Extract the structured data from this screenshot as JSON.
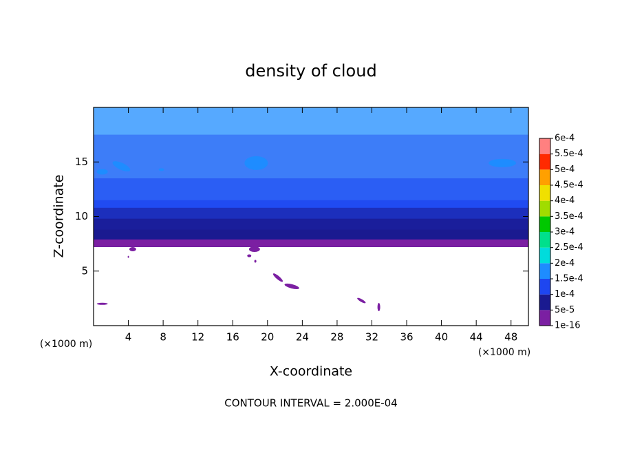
{
  "chart_data": {
    "type": "contour",
    "title": "density of cloud",
    "x_label": "X-coordinate",
    "y_label": "Z-coordinate",
    "x_unit": "(×1000 m)",
    "y_unit": "(×1000 m)",
    "footer": "CONTOUR INTERVAL = 2.000E-04",
    "xlim": [
      0,
      50
    ],
    "xticks": [
      4,
      8,
      12,
      16,
      20,
      24,
      28,
      32,
      36,
      40,
      44,
      48
    ],
    "ylim": [
      0,
      20
    ],
    "yticks": [
      5,
      10,
      15
    ],
    "colorbar": {
      "levels": [
        {
          "value": 1e-16,
          "label": "1e-16"
        },
        {
          "value": 5e-05,
          "label": "5e-5"
        },
        {
          "value": 0.0001,
          "label": "1e-4"
        },
        {
          "value": 0.00015,
          "label": "1.5e-4"
        },
        {
          "value": 0.0002,
          "label": "2e-4"
        },
        {
          "value": 0.00025,
          "label": "2.5e-4"
        },
        {
          "value": 0.0003,
          "label": "3e-4"
        },
        {
          "value": 0.00035,
          "label": "3.5e-4"
        },
        {
          "value": 0.0004,
          "label": "4e-4"
        },
        {
          "value": 0.00045,
          "label": "4.5e-4"
        },
        {
          "value": 0.0005,
          "label": "5e-4"
        },
        {
          "value": 0.00055,
          "label": "5.5e-4"
        },
        {
          "value": 0.0006,
          "label": "6e-4"
        }
      ],
      "colors": [
        "#7b1fa2",
        "#1a1a90",
        "#1e46f0",
        "#1e8cff",
        "#00dcdc",
        "#00e08c",
        "#00c800",
        "#a0dc00",
        "#f0e000",
        "#ffa000",
        "#ff2a00",
        "#ff8080"
      ]
    }
  }
}
